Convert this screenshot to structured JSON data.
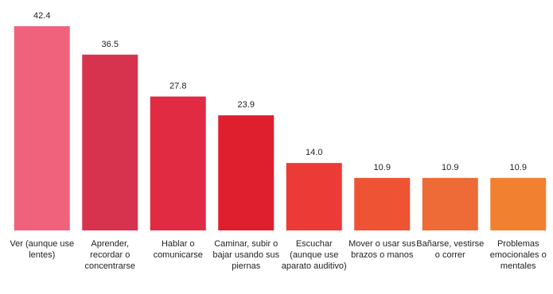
{
  "chart_data": {
    "type": "bar",
    "categories": [
      "Ver (aunque use lentes)",
      "Aprender, recordar o concentrarse",
      "Hablar o comunicarse",
      "Caminar, subir o bajar usando sus piernas",
      "Escuchar (aunque use aparato auditivo)",
      "Mover o usar sus brazos o manos",
      "Bañarse, vestirse o correr",
      "Problemas emocionales o mentales"
    ],
    "values": [
      42.4,
      36.5,
      27.8,
      23.9,
      14.0,
      10.9,
      10.9,
      10.9
    ],
    "value_labels": [
      "42.4",
      "36.5",
      "27.8",
      "23.9",
      "14.0",
      "10.9",
      "10.9",
      "10.9"
    ],
    "colors": [
      "#f0627b",
      "#d8334e",
      "#e02b42",
      "#e01f2e",
      "#ec3a37",
      "#ee5333",
      "#ee6a36",
      "#f28031"
    ]
  }
}
